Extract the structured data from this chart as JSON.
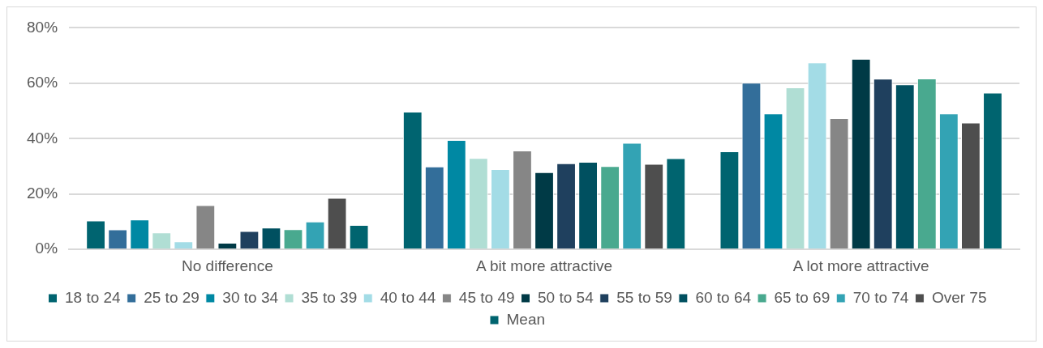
{
  "chart_data": {
    "type": "bar",
    "categories": [
      "No difference",
      "A bit more attractive",
      "A lot more attractive"
    ],
    "series": [
      {
        "name": "18 to 24",
        "color": "#006470",
        "values": [
          10.4,
          49.7,
          35.4
        ]
      },
      {
        "name": "25 to 29",
        "color": "#336e9a",
        "values": [
          7.2,
          29.9,
          60.2
        ]
      },
      {
        "name": "30 to 34",
        "color": "#0088a3",
        "values": [
          10.8,
          39.5,
          49.1
        ]
      },
      {
        "name": "35 to 39",
        "color": "#b0ded4",
        "values": [
          6.1,
          33.0,
          58.5
        ]
      },
      {
        "name": "40 to 44",
        "color": "#a3dce6",
        "values": [
          2.9,
          29.0,
          67.5
        ]
      },
      {
        "name": "45 to 49",
        "color": "#868686",
        "values": [
          16.0,
          35.7,
          47.4
        ]
      },
      {
        "name": "50 to 54",
        "color": "#003a46",
        "values": [
          2.4,
          27.9,
          68.8
        ]
      },
      {
        "name": "55 to 59",
        "color": "#1f405e",
        "values": [
          6.6,
          31.1,
          61.6
        ]
      },
      {
        "name": "60 to 64",
        "color": "#005060",
        "values": [
          7.9,
          31.6,
          59.6
        ]
      },
      {
        "name": "65 to 69",
        "color": "#49a98f",
        "values": [
          7.3,
          30.1,
          61.7
        ]
      },
      {
        "name": "70 to 74",
        "color": "#33a3b4",
        "values": [
          10.1,
          38.5,
          49.1
        ]
      },
      {
        "name": "Over 75",
        "color": "#4e4e4e",
        "values": [
          18.6,
          30.9,
          45.8
        ]
      },
      {
        "name": "Mean",
        "color": "#00646f",
        "values": [
          8.8,
          32.9,
          56.6
        ]
      }
    ],
    "ylim": [
      0,
      80
    ],
    "yticks": [
      {
        "value": 0,
        "label": "0%"
      },
      {
        "value": 20,
        "label": "20%"
      },
      {
        "value": 40,
        "label": "40%"
      },
      {
        "value": 60,
        "label": "60%"
      },
      {
        "value": 80,
        "label": "80%"
      }
    ],
    "grid": "y",
    "legend": "bottom"
  }
}
